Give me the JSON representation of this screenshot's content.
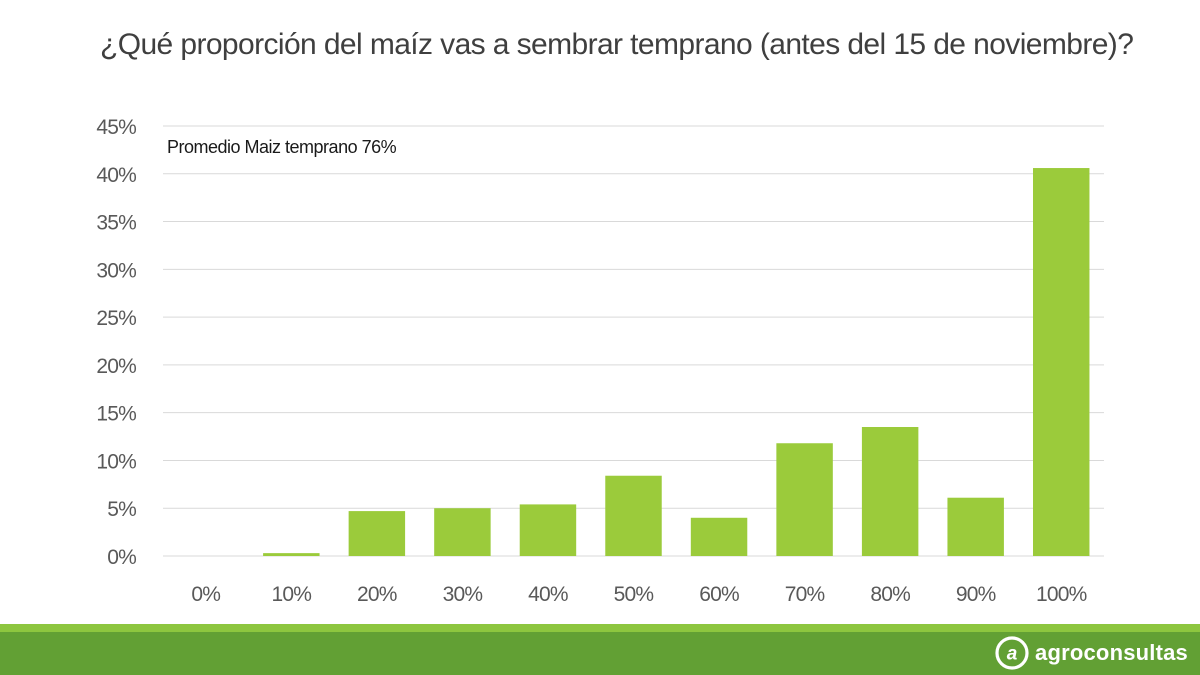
{
  "title": "¿Qué proporción del maíz vas a sembrar temprano (antes del 15 de noviembre)?",
  "brand": {
    "name": "agroconsultas",
    "logo_icon": "at-sign-logo-icon"
  },
  "colors": {
    "bar": "#9bcb3b",
    "grid": "#d9d9d9",
    "axis_text": "#595959",
    "footer_light": "#8dc63f",
    "footer_dark": "#62a034"
  },
  "chart_data": {
    "type": "bar",
    "categories": [
      "0%",
      "10%",
      "20%",
      "30%",
      "40%",
      "50%",
      "60%",
      "70%",
      "80%",
      "90%",
      "100%"
    ],
    "values": [
      0,
      0.3,
      4.7,
      5.0,
      5.4,
      8.4,
      4.0,
      11.8,
      13.5,
      6.1,
      40.6
    ],
    "y_unit": "%",
    "ylim": [
      0,
      45
    ],
    "yticks": [
      "0%",
      "5%",
      "10%",
      "15%",
      "20%",
      "25%",
      "30%",
      "35%",
      "40%",
      "45%"
    ],
    "grid": true,
    "legend": "none",
    "annotation": "Promedio Maiz temprano 76%"
  }
}
